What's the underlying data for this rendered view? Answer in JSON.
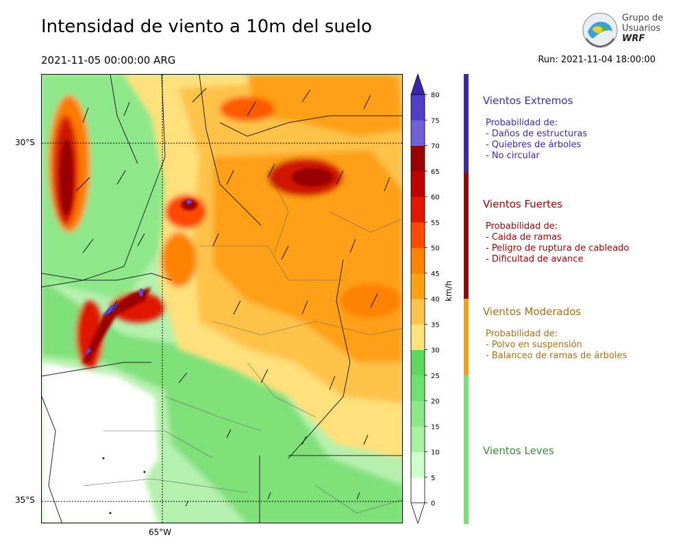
{
  "header": {
    "title": "Intensidad de viento a 10m del suelo",
    "datetime": "2021-11-05 00:00:00 ARG",
    "run": "Run: 2021-11-04 18:00:00"
  },
  "logo": {
    "line1": "Grupo de",
    "line2": "Usuarios",
    "line3": "WRF"
  },
  "map": {
    "lat_labels": [
      "30°S",
      "35°S"
    ],
    "lon_labels": [
      "65°W"
    ]
  },
  "colorbar": {
    "unit": "km/h",
    "ticks": [
      "0",
      "5",
      "10",
      "15",
      "20",
      "25",
      "30",
      "35",
      "40",
      "45",
      "50",
      "55",
      "60",
      "65",
      "70",
      "75",
      "80"
    ],
    "colors": [
      "#ffffff",
      "#cfffc8",
      "#a8f2a0",
      "#8ee88a",
      "#6fdf6f",
      "#5cd85c",
      "#ffe27a",
      "#ffc24a",
      "#ffa012",
      "#ff8200",
      "#ff4a00",
      "#e01800",
      "#bf0000",
      "#9a0000",
      "#7060d8",
      "#5040c8",
      "#3826b0"
    ]
  },
  "categories": [
    {
      "title": "Vientos Extremos",
      "color": "#3b28b0",
      "text_color": "#3b28a8",
      "lines": [
        "Probabilidad de:",
        "- Daños de estructuras",
        "- Quiebres de árboles",
        "- No circular"
      ]
    },
    {
      "title": "Vientos Fuertes",
      "color": "#a00000",
      "text_color": "#9a0000",
      "lines": [
        "Probabilidad de:",
        "- Caida de ramas",
        "- Peligro de ruptura de cableado",
        "- Dificultad de avance"
      ]
    },
    {
      "title": "Vientos Moderados",
      "color": "#ffa000",
      "text_color": "#a87010",
      "lines": [
        "Probabilidad de:",
        "- Polvo en suspensión",
        "- Balanceo de ramas de árboles"
      ]
    },
    {
      "title": "Vientos Leves",
      "color": "#70e870",
      "text_color": "#3a8a3a",
      "lines": []
    }
  ]
}
